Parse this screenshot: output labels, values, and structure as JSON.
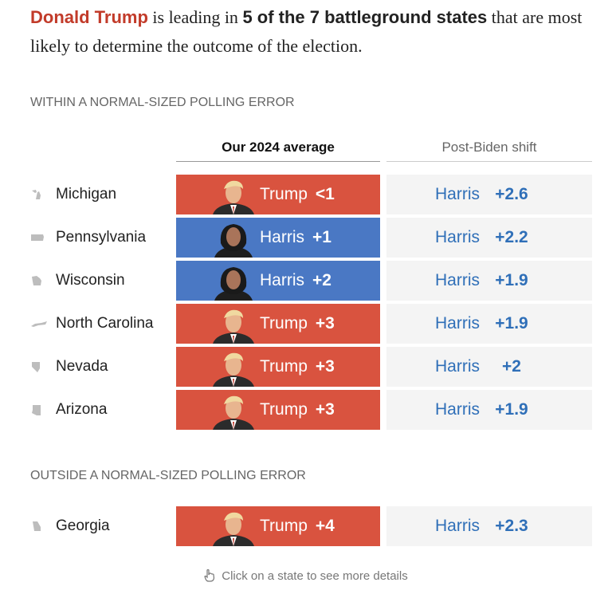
{
  "headline": {
    "name": "Donald Trump",
    "part1": " is leading in ",
    "bold": "5 of the 7 battleground states",
    "part2": " that are most likely to determine the outcome of the election."
  },
  "sections": {
    "within": "WITHIN A NORMAL-SIZED POLLING ERROR",
    "outside": "OUTSIDE A NORMAL-SIZED POLLING ERROR"
  },
  "columns": {
    "average": "Our 2024 average",
    "shift": "Post-Biden shift"
  },
  "rows": [
    {
      "state": "Michigan",
      "avg_candidate": "Trump",
      "avg_margin": "<1",
      "shift_candidate": "Harris",
      "shift_margin": "+2.6"
    },
    {
      "state": "Pennsylvania",
      "avg_candidate": "Harris",
      "avg_margin": "+1",
      "shift_candidate": "Harris",
      "shift_margin": "+2.2"
    },
    {
      "state": "Wisconsin",
      "avg_candidate": "Harris",
      "avg_margin": "+2",
      "shift_candidate": "Harris",
      "shift_margin": "+1.9"
    },
    {
      "state": "North Carolina",
      "avg_candidate": "Trump",
      "avg_margin": "+3",
      "shift_candidate": "Harris",
      "shift_margin": "+1.9"
    },
    {
      "state": "Nevada",
      "avg_candidate": "Trump",
      "avg_margin": "+3",
      "shift_candidate": "Harris",
      "shift_margin": "+2"
    },
    {
      "state": "Arizona",
      "avg_candidate": "Trump",
      "avg_margin": "+3",
      "shift_candidate": "Harris",
      "shift_margin": "+1.9"
    },
    {
      "state": "Georgia",
      "avg_candidate": "Trump",
      "avg_margin": "+4",
      "shift_candidate": "Harris",
      "shift_margin": "+2.3"
    }
  ],
  "footer": {
    "icon": "pointer-hand-icon",
    "text": "Click on a state to see more details"
  },
  "colors": {
    "trump": "#d9533f",
    "harris": "#4a78c4",
    "harris_text": "#2f6fb8",
    "headline_name": "#c23b2a"
  }
}
